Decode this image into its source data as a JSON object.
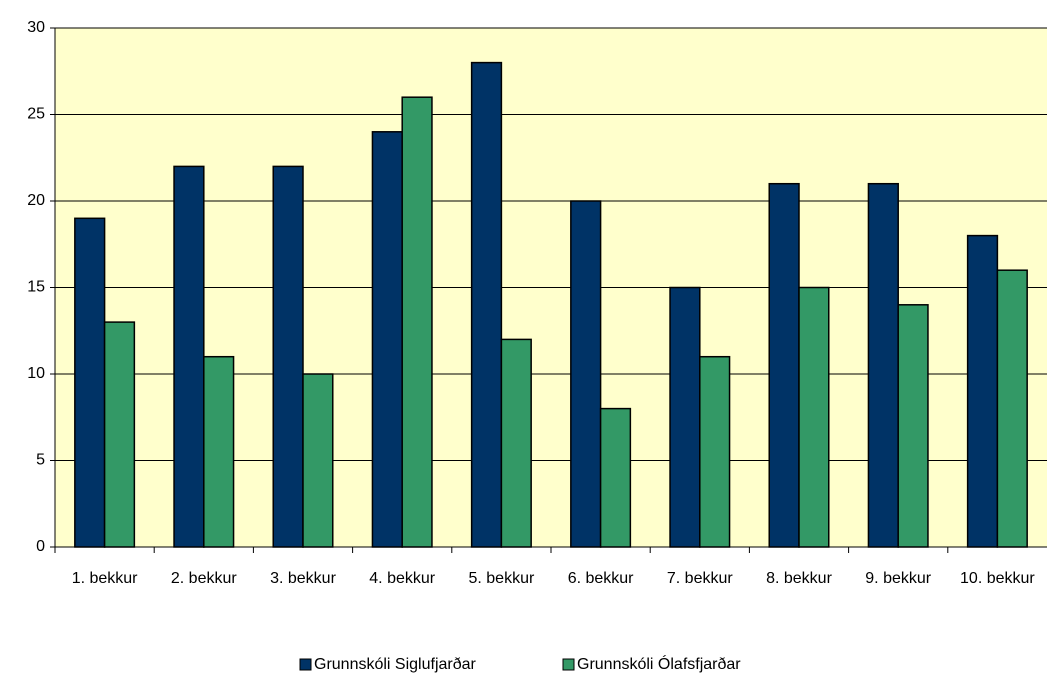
{
  "chart_data": {
    "type": "bar",
    "categories": [
      "1. bekkur",
      "2. bekkur",
      "3. bekkur",
      "4. bekkur",
      "5. bekkur",
      "6. bekkur",
      "7. bekkur",
      "8. bekkur",
      "9. bekkur",
      "10. bekkur"
    ],
    "series": [
      {
        "name": "Grunnskóli Siglufjarðar",
        "color": "#003366",
        "values": [
          19,
          22,
          22,
          24,
          28,
          20,
          15,
          21,
          21,
          18
        ]
      },
      {
        "name": "Grunnskóli Ólafsfjarðar",
        "color": "#339966",
        "values": [
          13,
          11,
          10,
          26,
          12,
          8,
          11,
          15,
          14,
          16
        ]
      }
    ],
    "ylim": [
      0,
      30
    ],
    "yticks": [
      0,
      5,
      10,
      15,
      20,
      25,
      30
    ],
    "grid": true,
    "legend": "bottom"
  }
}
